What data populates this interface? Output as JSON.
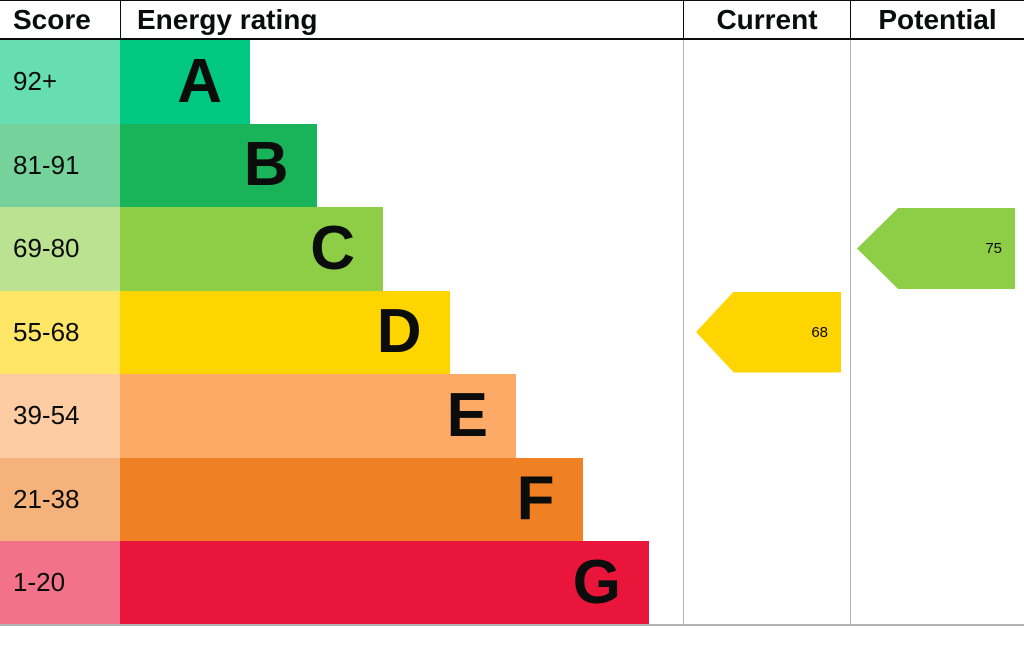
{
  "header": {
    "score": "Score",
    "energy_rating": "Energy rating",
    "current": "Current",
    "potential": "Potential"
  },
  "bands": [
    {
      "score": "92+",
      "letter": "A",
      "color": "#00c781"
    },
    {
      "score": "81-91",
      "letter": "B",
      "color": "#19b459"
    },
    {
      "score": "69-80",
      "letter": "C",
      "color": "#8dce46"
    },
    {
      "score": "55-68",
      "letter": "D",
      "color": "#ffd500"
    },
    {
      "score": "39-54",
      "letter": "E",
      "color": "#fcaa65"
    },
    {
      "score": "21-38",
      "letter": "F",
      "color": "#ef8023"
    },
    {
      "score": "1-20",
      "letter": "G",
      "color": "#e9153b"
    }
  ],
  "current": {
    "value": "68",
    "band": "D",
    "color": "#ffd500"
  },
  "potential": {
    "value": "75",
    "band": "C",
    "color": "#8dce46"
  },
  "chart_data": {
    "type": "bar",
    "title": "Energy rating",
    "categories": [
      "A",
      "B",
      "C",
      "D",
      "E",
      "F",
      "G"
    ],
    "score_ranges": [
      "92+",
      "81-91",
      "69-80",
      "55-68",
      "39-54",
      "21-38",
      "1-20"
    ],
    "band_colors": [
      "#00c781",
      "#19b459",
      "#8dce46",
      "#ffd500",
      "#fcaa65",
      "#ef8023",
      "#e9153b"
    ],
    "current_score": 68,
    "current_band": "D",
    "potential_score": 75,
    "potential_band": "C",
    "legend_position": "none",
    "grid": false
  }
}
